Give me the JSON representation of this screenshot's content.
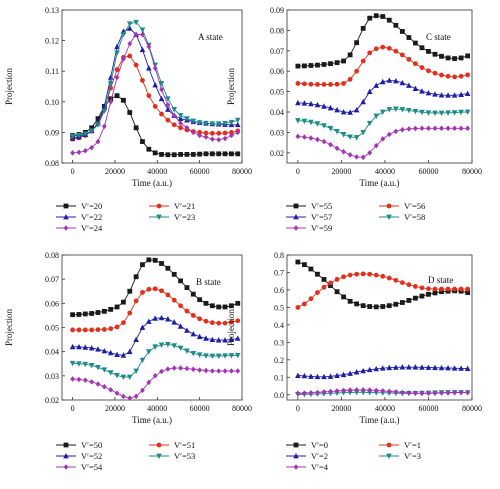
{
  "figure": {
    "time_label": "Time (a.u.)",
    "projection_label": "Projection"
  },
  "chart_data": [
    {
      "id": "A",
      "type": "line",
      "title": "A state",
      "xlabel": "Time (a.u.)",
      "ylabel": "Projection",
      "xlim": [
        -5000,
        80000
      ],
      "ylim": [
        0.08,
        0.13
      ],
      "xticks": [
        "0",
        "20000",
        "40000",
        "60000",
        "80000"
      ],
      "xtick_values": [
        0,
        20000,
        40000,
        60000,
        80000
      ],
      "yticks": [
        "0.08",
        "0.09",
        "0.10",
        "0.11",
        "0.12",
        "0.13"
      ],
      "ytick_values": [
        0.08,
        0.09,
        0.1,
        0.11,
        0.12,
        0.13
      ],
      "x": [
        0,
        3000,
        6000,
        9000,
        12000,
        15000,
        18000,
        21000,
        24000,
        27000,
        30000,
        33000,
        36000,
        39000,
        42000,
        45000,
        48000,
        51000,
        54000,
        57000,
        60000,
        63000,
        66000,
        69000,
        72000,
        75000,
        78000
      ],
      "series": [
        {
          "name": "V′=20",
          "color": "#1a1a1a",
          "marker": "square",
          "values": [
            0.089,
            0.0893,
            0.09,
            0.0915,
            0.0945,
            0.0985,
            0.101,
            0.102,
            0.1005,
            0.0965,
            0.0915,
            0.087,
            0.0845,
            0.0833,
            0.0828,
            0.0827,
            0.0827,
            0.0828,
            0.0828,
            0.0828,
            0.0829,
            0.083,
            0.083,
            0.083,
            0.083,
            0.083,
            0.083
          ]
        },
        {
          "name": "V′=21",
          "color": "#e0301e",
          "marker": "circle",
          "values": [
            0.0878,
            0.0882,
            0.089,
            0.0905,
            0.093,
            0.0975,
            0.1045,
            0.1105,
            0.1145,
            0.115,
            0.112,
            0.107,
            0.102,
            0.0985,
            0.096,
            0.094,
            0.0925,
            0.0915,
            0.0908,
            0.0903,
            0.09,
            0.0898,
            0.0897,
            0.0897,
            0.0898,
            0.09,
            0.0905
          ]
        },
        {
          "name": "V′=22",
          "color": "#1f1fa6",
          "marker": "triangle",
          "values": [
            0.088,
            0.0885,
            0.0893,
            0.0905,
            0.093,
            0.0985,
            0.108,
            0.118,
            0.123,
            0.124,
            0.122,
            0.117,
            0.111,
            0.1055,
            0.101,
            0.0975,
            0.0955,
            0.0945,
            0.094,
            0.0935,
            0.0932,
            0.093,
            0.0928,
            0.0927,
            0.0926,
            0.0925,
            0.0925
          ]
        },
        {
          "name": "V′=23",
          "color": "#1f8a8a",
          "marker": "tri-down",
          "values": [
            0.0888,
            0.089,
            0.0895,
            0.0905,
            0.0925,
            0.097,
            0.106,
            0.116,
            0.122,
            0.1255,
            0.126,
            0.1235,
            0.1185,
            0.112,
            0.106,
            0.101,
            0.0975,
            0.0955,
            0.0945,
            0.0937,
            0.0932,
            0.093,
            0.0928,
            0.0928,
            0.093,
            0.0933,
            0.094
          ]
        },
        {
          "name": "V′=24",
          "color": "#a335b5",
          "marker": "diamond",
          "values": [
            0.0833,
            0.0835,
            0.084,
            0.085,
            0.087,
            0.092,
            0.1,
            0.108,
            0.114,
            0.119,
            0.122,
            0.122,
            0.118,
            0.111,
            0.104,
            0.099,
            0.0955,
            0.093,
            0.0915,
            0.09,
            0.089,
            0.0885,
            0.0878,
            0.0876,
            0.088,
            0.089,
            0.09
          ]
        }
      ]
    },
    {
      "id": "C",
      "type": "line",
      "title": "C state",
      "xlabel": "Time (a.u.)",
      "ylabel": "Projection",
      "xlim": [
        -5000,
        80000
      ],
      "ylim": [
        0.015,
        0.09
      ],
      "xticks": [
        "0",
        "20000",
        "40000",
        "60000",
        "80000"
      ],
      "xtick_values": [
        0,
        20000,
        40000,
        60000,
        80000
      ],
      "yticks": [
        "0.02",
        "0.03",
        "0.04",
        "0.05",
        "0.06",
        "0.07",
        "0.08",
        "0.09"
      ],
      "ytick_values": [
        0.02,
        0.03,
        0.04,
        0.05,
        0.06,
        0.07,
        0.08,
        0.09
      ],
      "x": [
        0,
        3000,
        6000,
        9000,
        12000,
        15000,
        18000,
        21000,
        24000,
        27000,
        30000,
        33000,
        36000,
        39000,
        42000,
        45000,
        48000,
        51000,
        54000,
        57000,
        60000,
        63000,
        66000,
        69000,
        72000,
        75000,
        78000
      ],
      "series": [
        {
          "name": "V′=55",
          "color": "#1a1a1a",
          "marker": "square",
          "values": [
            0.0625,
            0.0626,
            0.0628,
            0.063,
            0.0633,
            0.0637,
            0.0642,
            0.065,
            0.068,
            0.074,
            0.081,
            0.086,
            0.0872,
            0.0868,
            0.085,
            0.0825,
            0.0795,
            0.0765,
            0.0738,
            0.0715,
            0.0697,
            0.0683,
            0.0673,
            0.0665,
            0.0662,
            0.0665,
            0.0675
          ]
        },
        {
          "name": "V′=56",
          "color": "#e0301e",
          "marker": "circle",
          "values": [
            0.054,
            0.0538,
            0.0536,
            0.0535,
            0.0535,
            0.0535,
            0.0536,
            0.054,
            0.056,
            0.06,
            0.065,
            0.069,
            0.071,
            0.0718,
            0.0712,
            0.0698,
            0.068,
            0.0658,
            0.0637,
            0.0618,
            0.0602,
            0.059,
            0.0581,
            0.0575,
            0.0572,
            0.0575,
            0.0582
          ]
        },
        {
          "name": "V′=57",
          "color": "#1f1fa6",
          "marker": "triangle",
          "values": [
            0.0445,
            0.0443,
            0.044,
            0.0435,
            0.0428,
            0.042,
            0.041,
            0.04,
            0.0398,
            0.041,
            0.045,
            0.05,
            0.053,
            0.0548,
            0.0555,
            0.0552,
            0.0543,
            0.053,
            0.0515,
            0.0502,
            0.0493,
            0.0487,
            0.0483,
            0.0482,
            0.0482,
            0.0485,
            0.049
          ]
        },
        {
          "name": "V′=58",
          "color": "#1f8a8a",
          "marker": "tri-down",
          "values": [
            0.0358,
            0.0355,
            0.035,
            0.0343,
            0.0333,
            0.032,
            0.0305,
            0.029,
            0.0278,
            0.0275,
            0.03,
            0.0345,
            0.038,
            0.04,
            0.0412,
            0.0415,
            0.0412,
            0.0408,
            0.0403,
            0.0399,
            0.0396,
            0.0395,
            0.0395,
            0.0396,
            0.0397,
            0.0399,
            0.04
          ]
        },
        {
          "name": "V′=59",
          "color": "#a335b5",
          "marker": "diamond",
          "values": [
            0.028,
            0.0277,
            0.0272,
            0.0265,
            0.0255,
            0.024,
            0.0222,
            0.0205,
            0.019,
            0.018,
            0.0178,
            0.02,
            0.0235,
            0.0268,
            0.029,
            0.0305,
            0.0313,
            0.0317,
            0.0319,
            0.032,
            0.032,
            0.032,
            0.032,
            0.032,
            0.032,
            0.032,
            0.032
          ]
        }
      ]
    },
    {
      "id": "B",
      "type": "line",
      "title": "B state",
      "xlabel": "Time (a.u.)",
      "ylabel": "Projection",
      "xlim": [
        -5000,
        80000
      ],
      "ylim": [
        0.02,
        0.08
      ],
      "xticks": [
        "0",
        "20000",
        "40000",
        "60000",
        "80000"
      ],
      "xtick_values": [
        0,
        20000,
        40000,
        60000,
        80000
      ],
      "yticks": [
        "0.02",
        "0.03",
        "0.04",
        "0.05",
        "0.06",
        "0.07",
        "0.08"
      ],
      "ytick_values": [
        0.02,
        0.03,
        0.04,
        0.05,
        0.06,
        0.07,
        0.08
      ],
      "x": [
        0,
        3000,
        6000,
        9000,
        12000,
        15000,
        18000,
        21000,
        24000,
        27000,
        30000,
        33000,
        36000,
        39000,
        42000,
        45000,
        48000,
        51000,
        54000,
        57000,
        60000,
        63000,
        66000,
        69000,
        72000,
        75000,
        78000
      ],
      "series": [
        {
          "name": "V′=50",
          "color": "#1a1a1a",
          "marker": "square",
          "values": [
            0.0553,
            0.0554,
            0.0556,
            0.0558,
            0.0562,
            0.0567,
            0.0575,
            0.0585,
            0.0605,
            0.065,
            0.071,
            0.076,
            0.078,
            0.0778,
            0.0765,
            0.0745,
            0.072,
            0.0693,
            0.0665,
            0.0638,
            0.0615,
            0.06,
            0.059,
            0.0585,
            0.0585,
            0.059,
            0.06
          ]
        },
        {
          "name": "V′=51",
          "color": "#e0301e",
          "marker": "circle",
          "values": [
            0.049,
            0.049,
            0.049,
            0.049,
            0.0491,
            0.0492,
            0.0495,
            0.0502,
            0.052,
            0.056,
            0.061,
            0.0645,
            0.0658,
            0.066,
            0.0652,
            0.0635,
            0.0613,
            0.059,
            0.0568,
            0.055,
            0.0536,
            0.0526,
            0.052,
            0.0518,
            0.0518,
            0.0522,
            0.0528
          ]
        },
        {
          "name": "V′=52",
          "color": "#1f1fa6",
          "marker": "triangle",
          "values": [
            0.042,
            0.042,
            0.0418,
            0.0415,
            0.041,
            0.0403,
            0.0395,
            0.0388,
            0.0385,
            0.04,
            0.045,
            0.05,
            0.0525,
            0.0538,
            0.054,
            0.0535,
            0.0522,
            0.0505,
            0.0488,
            0.0473,
            0.0462,
            0.0455,
            0.045,
            0.0448,
            0.0448,
            0.045,
            0.0455
          ]
        },
        {
          "name": "V′=53",
          "color": "#1f8a8a",
          "marker": "tri-down",
          "values": [
            0.0352,
            0.035,
            0.0348,
            0.0343,
            0.0335,
            0.0325,
            0.0313,
            0.0302,
            0.0295,
            0.0295,
            0.032,
            0.0365,
            0.04,
            0.042,
            0.0428,
            0.043,
            0.0425,
            0.0415,
            0.0403,
            0.0393,
            0.0387,
            0.0383,
            0.0382,
            0.0382,
            0.0383,
            0.0384,
            0.0385
          ]
        },
        {
          "name": "V′=54",
          "color": "#a335b5",
          "marker": "diamond",
          "values": [
            0.0287,
            0.0285,
            0.0282,
            0.0275,
            0.0266,
            0.0255,
            0.0242,
            0.0228,
            0.0215,
            0.0208,
            0.0215,
            0.024,
            0.0273,
            0.03,
            0.0318,
            0.0328,
            0.0332,
            0.0332,
            0.033,
            0.0327,
            0.0324,
            0.0322,
            0.032,
            0.032,
            0.032,
            0.032,
            0.032
          ]
        }
      ]
    },
    {
      "id": "D",
      "type": "line",
      "title": "D state",
      "xlabel": "Time (a.u.)",
      "ylabel": "Projection",
      "xlim": [
        -5000,
        80000
      ],
      "ylim": [
        -0.03,
        0.8
      ],
      "xticks": [
        "0",
        "20000",
        "40000",
        "60000",
        "80000"
      ],
      "xtick_values": [
        0,
        20000,
        40000,
        60000,
        80000
      ],
      "yticks": [
        "0.0",
        "0.1",
        "0.2",
        "0.3",
        "0.4",
        "0.5",
        "0.6",
        "0.7",
        "0.8"
      ],
      "ytick_values": [
        0.0,
        0.1,
        0.2,
        0.3,
        0.4,
        0.5,
        0.6,
        0.7,
        0.8
      ],
      "x": [
        0,
        3000,
        6000,
        9000,
        12000,
        15000,
        18000,
        21000,
        24000,
        27000,
        30000,
        33000,
        36000,
        39000,
        42000,
        45000,
        48000,
        51000,
        54000,
        57000,
        60000,
        63000,
        66000,
        69000,
        72000,
        75000,
        78000
      ],
      "series": [
        {
          "name": "V′=0",
          "color": "#1a1a1a",
          "marker": "square",
          "values": [
            0.76,
            0.745,
            0.72,
            0.69,
            0.66,
            0.625,
            0.59,
            0.56,
            0.535,
            0.52,
            0.51,
            0.505,
            0.503,
            0.505,
            0.51,
            0.518,
            0.528,
            0.54,
            0.553,
            0.565,
            0.575,
            0.583,
            0.59,
            0.593,
            0.595,
            0.593,
            0.585
          ]
        },
        {
          "name": "V′=1",
          "color": "#e0301e",
          "marker": "circle",
          "values": [
            0.5,
            0.52,
            0.55,
            0.585,
            0.615,
            0.64,
            0.66,
            0.675,
            0.685,
            0.69,
            0.692,
            0.69,
            0.685,
            0.678,
            0.668,
            0.655,
            0.642,
            0.63,
            0.62,
            0.612,
            0.607,
            0.605,
            0.605,
            0.605,
            0.605,
            0.605,
            0.605
          ]
        },
        {
          "name": "V′=2",
          "color": "#1f1fa6",
          "marker": "triangle",
          "values": [
            0.11,
            0.108,
            0.105,
            0.103,
            0.103,
            0.105,
            0.11,
            0.115,
            0.122,
            0.13,
            0.137,
            0.143,
            0.148,
            0.152,
            0.155,
            0.157,
            0.158,
            0.158,
            0.158,
            0.157,
            0.156,
            0.155,
            0.154,
            0.153,
            0.152,
            0.151,
            0.15
          ]
        },
        {
          "name": "V′=3",
          "color": "#1f8a8a",
          "marker": "tri-down",
          "values": [
            0.002,
            0.002,
            0.003,
            0.004,
            0.006,
            0.008,
            0.01,
            0.012,
            0.013,
            0.014,
            0.014,
            0.013,
            0.012,
            0.011,
            0.01,
            0.009,
            0.008,
            0.008,
            0.008,
            0.009,
            0.01,
            0.011,
            0.012,
            0.013,
            0.013,
            0.013,
            0.012
          ]
        },
        {
          "name": "V′=4",
          "color": "#a335b5",
          "marker": "diamond",
          "values": [
            0.008,
            0.009,
            0.011,
            0.013,
            0.016,
            0.019,
            0.022,
            0.025,
            0.027,
            0.028,
            0.028,
            0.027,
            0.025,
            0.022,
            0.019,
            0.016,
            0.013,
            0.011,
            0.009,
            0.008,
            0.008,
            0.009,
            0.01,
            0.011,
            0.012,
            0.013,
            0.013
          ]
        }
      ]
    }
  ]
}
